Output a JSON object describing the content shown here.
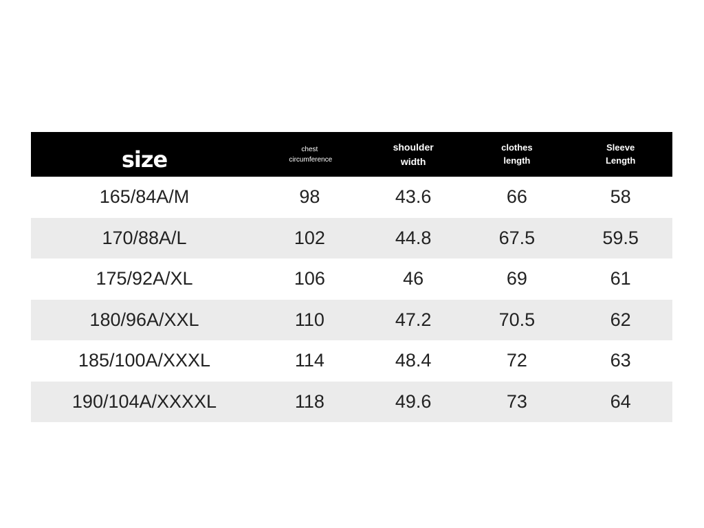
{
  "table": {
    "header": [
      "size",
      "chest circumference",
      "shoulder width",
      "clothes length",
      "Sleeve Length"
    ],
    "rows": [
      [
        "165/84A/M",
        98,
        43.6,
        66,
        58
      ],
      [
        "170/88A/L",
        102,
        44.8,
        67.5,
        59.5
      ],
      [
        "175/92A/XL",
        106,
        46,
        69,
        61
      ],
      [
        "180/96A/XXL",
        110,
        47.2,
        70.5,
        62
      ],
      [
        "185/100A/XXXL",
        114,
        48.4,
        72,
        63
      ],
      [
        "190/104A/XXXXL",
        118,
        49.6,
        73,
        64
      ]
    ]
  }
}
